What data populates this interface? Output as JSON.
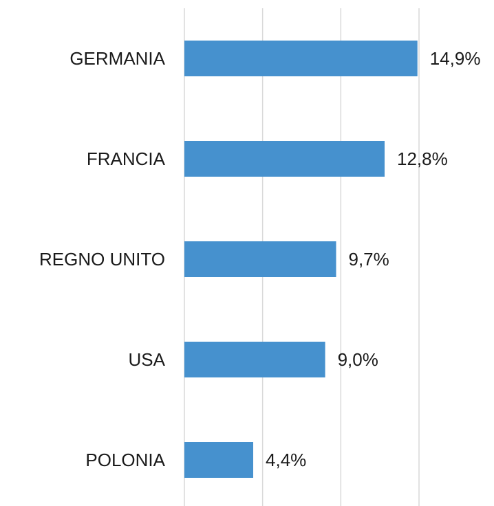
{
  "chart_data": {
    "type": "hbar",
    "categories": [
      "GERMANIA",
      "FRANCIA",
      "REGNO UNITO",
      "USA",
      "POLONIA"
    ],
    "values": [
      14.9,
      12.8,
      9.7,
      9.0,
      4.4
    ],
    "value_labels": [
      "14,9%",
      "12,8%",
      "9,7%",
      "9,0%",
      "4,4%"
    ],
    "color": "#4691ce",
    "xlim": [
      0,
      15
    ],
    "xticks": [
      0,
      5,
      10,
      15
    ],
    "grid": true
  }
}
